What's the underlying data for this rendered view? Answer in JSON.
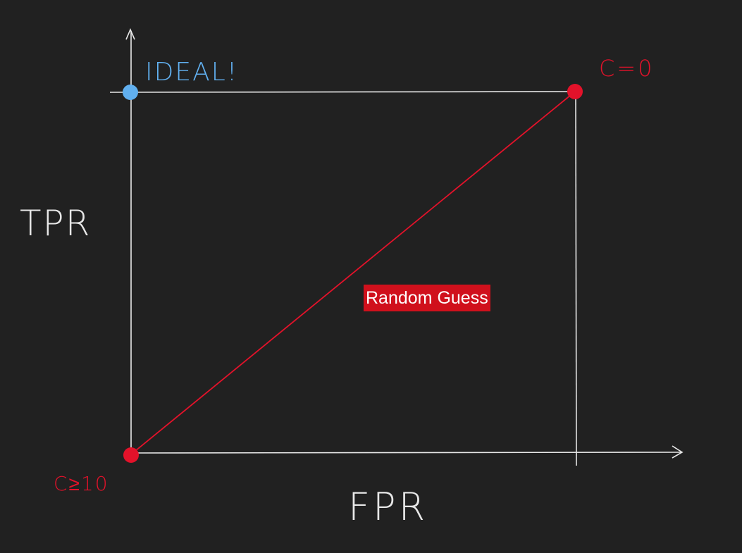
{
  "colors": {
    "background": "#212121",
    "axis": "#e8e8e8",
    "red": "#e3122a",
    "blue": "#61b0f0",
    "label_bg": "#d0101c"
  },
  "axes": {
    "y_label": "TPR",
    "x_label": "FPR"
  },
  "points": {
    "ideal_label": "IDEAL!",
    "c_zero_label": "C=0",
    "c_high_label": "C≥10"
  },
  "annotation": {
    "random_guess": "Random Guess"
  }
}
